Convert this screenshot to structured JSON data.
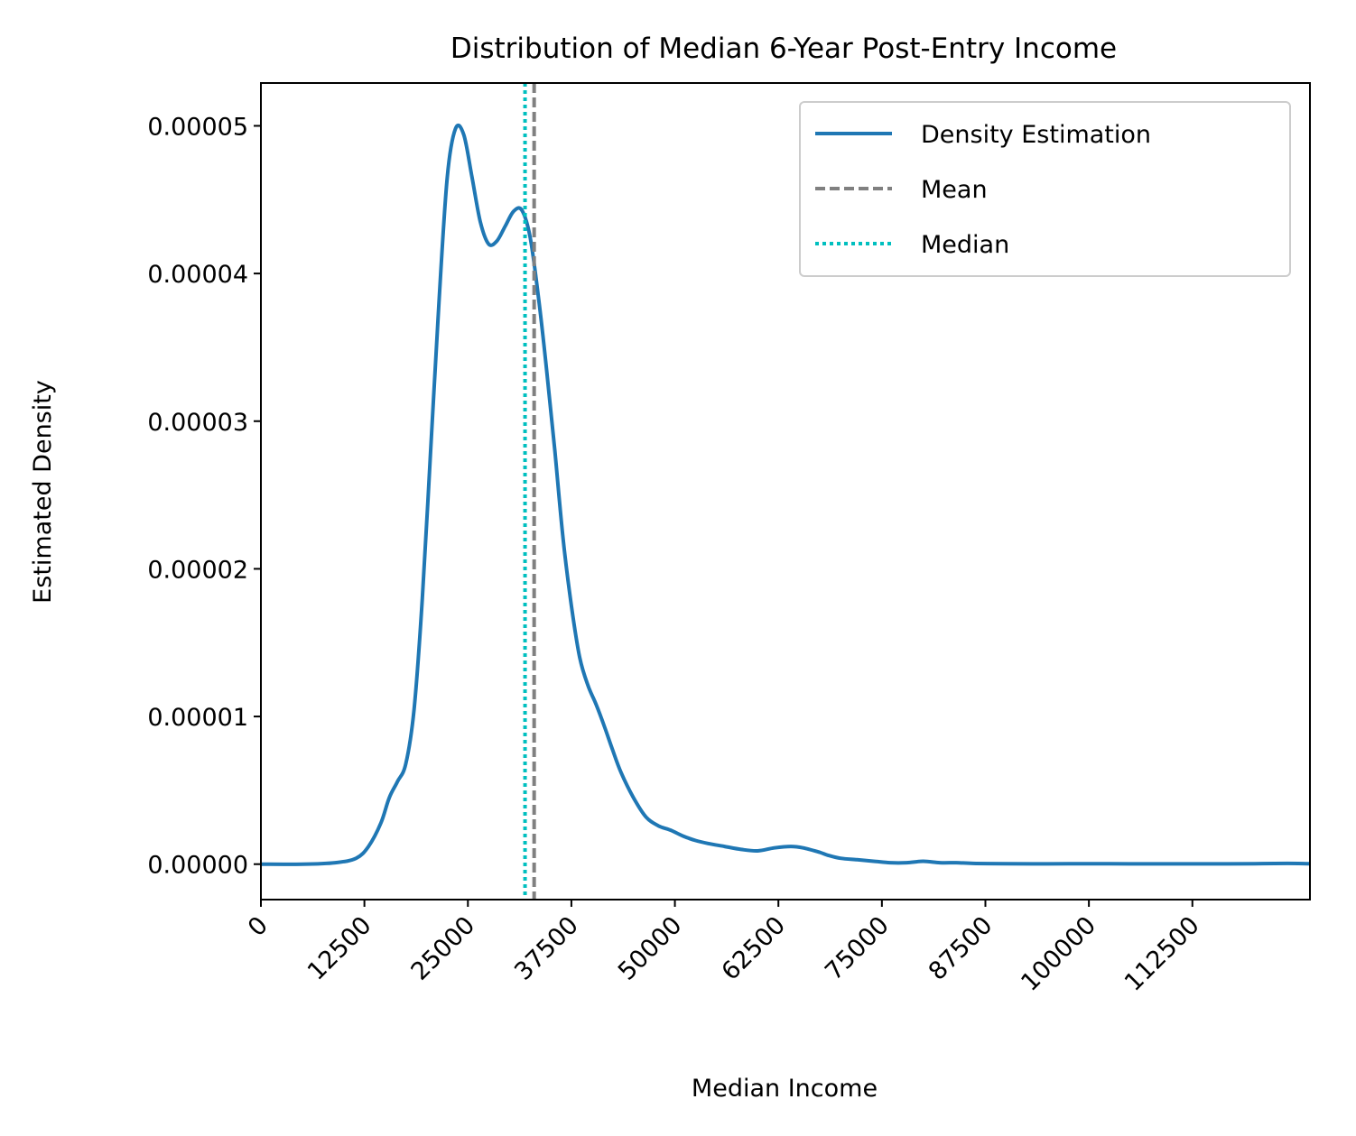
{
  "chart_data": {
    "type": "line",
    "title": "Distribution of Median 6-Year Post-Entry Income",
    "xlabel": "Median Income",
    "ylabel": "Estimated Density",
    "xlim": [
      0,
      126700
    ],
    "ylim": [
      -2.4e-06,
      5.29e-05
    ],
    "x_ticks": [
      0,
      12500,
      25000,
      37500,
      50000,
      62500,
      75000,
      87500,
      100000,
      112500
    ],
    "x_tick_labels": [
      "0",
      "12500",
      "25000",
      "37500",
      "50000",
      "62500",
      "75000",
      "87500",
      "100000",
      "112500"
    ],
    "y_ticks": [
      0,
      1e-05,
      2e-05,
      3e-05,
      4e-05,
      5e-05
    ],
    "y_tick_labels": [
      "0.00000",
      "0.00001",
      "0.00002",
      "0.00003",
      "0.00004",
      "0.00005"
    ],
    "grid": false,
    "legend_position": "top-right",
    "series": [
      {
        "name": "Density Estimation",
        "style": "solid",
        "color": "#1f77b4",
        "x": [
          0,
          5000,
          9000,
          11500,
          13000,
          14500,
          15500,
          16500,
          17500,
          18500,
          19500,
          20500,
          21500,
          22500,
          23500,
          24500,
          25500,
          26500,
          27500,
          28500,
          29500,
          30500,
          31500,
          32500,
          33500,
          34500,
          35500,
          36500,
          37500,
          38500,
          39500,
          40500,
          41500,
          42500,
          43500,
          45000,
          46500,
          48000,
          49500,
          51000,
          52500,
          54000,
          56000,
          58000,
          60000,
          62000,
          64000,
          65500,
          67500,
          68500,
          70000,
          72000,
          74000,
          76000,
          78000,
          80000,
          82000,
          84000,
          86000,
          90000,
          95000,
          100000,
          105000,
          110000,
          115000,
          120000,
          124000,
          126700
        ],
        "y": [
          0,
          0,
          1e-07,
          4e-07,
          1.2e-06,
          2.8e-06,
          4.5e-06,
          5.6e-06,
          6.8e-06,
          1.05e-05,
          1.8e-05,
          2.8e-05,
          3.8e-05,
          4.65e-05,
          4.98e-05,
          4.94e-05,
          4.65e-05,
          4.35e-05,
          4.2e-05,
          4.22e-05,
          4.32e-05,
          4.42e-05,
          4.43e-05,
          4.25e-05,
          3.85e-05,
          3.35e-05,
          2.8e-05,
          2.2e-05,
          1.75e-05,
          1.4e-05,
          1.21e-05,
          1.08e-05,
          9.3e-06,
          7.7e-06,
          6.2e-06,
          4.5e-06,
          3.2e-06,
          2.6e-06,
          2.3e-06,
          1.9e-06,
          1.6e-06,
          1.4e-06,
          1.2e-06,
          1e-06,
          9e-07,
          1.1e-06,
          1.2e-06,
          1.1e-06,
          8e-07,
          6e-07,
          4e-07,
          3e-07,
          2e-07,
          1e-07,
          1e-07,
          2e-07,
          1e-07,
          1e-07,
          5e-08,
          3e-08,
          2e-08,
          3e-08,
          2e-08,
          2e-08,
          2e-08,
          3e-08,
          5e-08,
          3e-08
        ]
      },
      {
        "name": "Mean",
        "style": "dashed",
        "color": "#808080",
        "x": 33000
      },
      {
        "name": "Median",
        "style": "dotted",
        "color": "#00bfbf",
        "x": 31900
      }
    ]
  }
}
